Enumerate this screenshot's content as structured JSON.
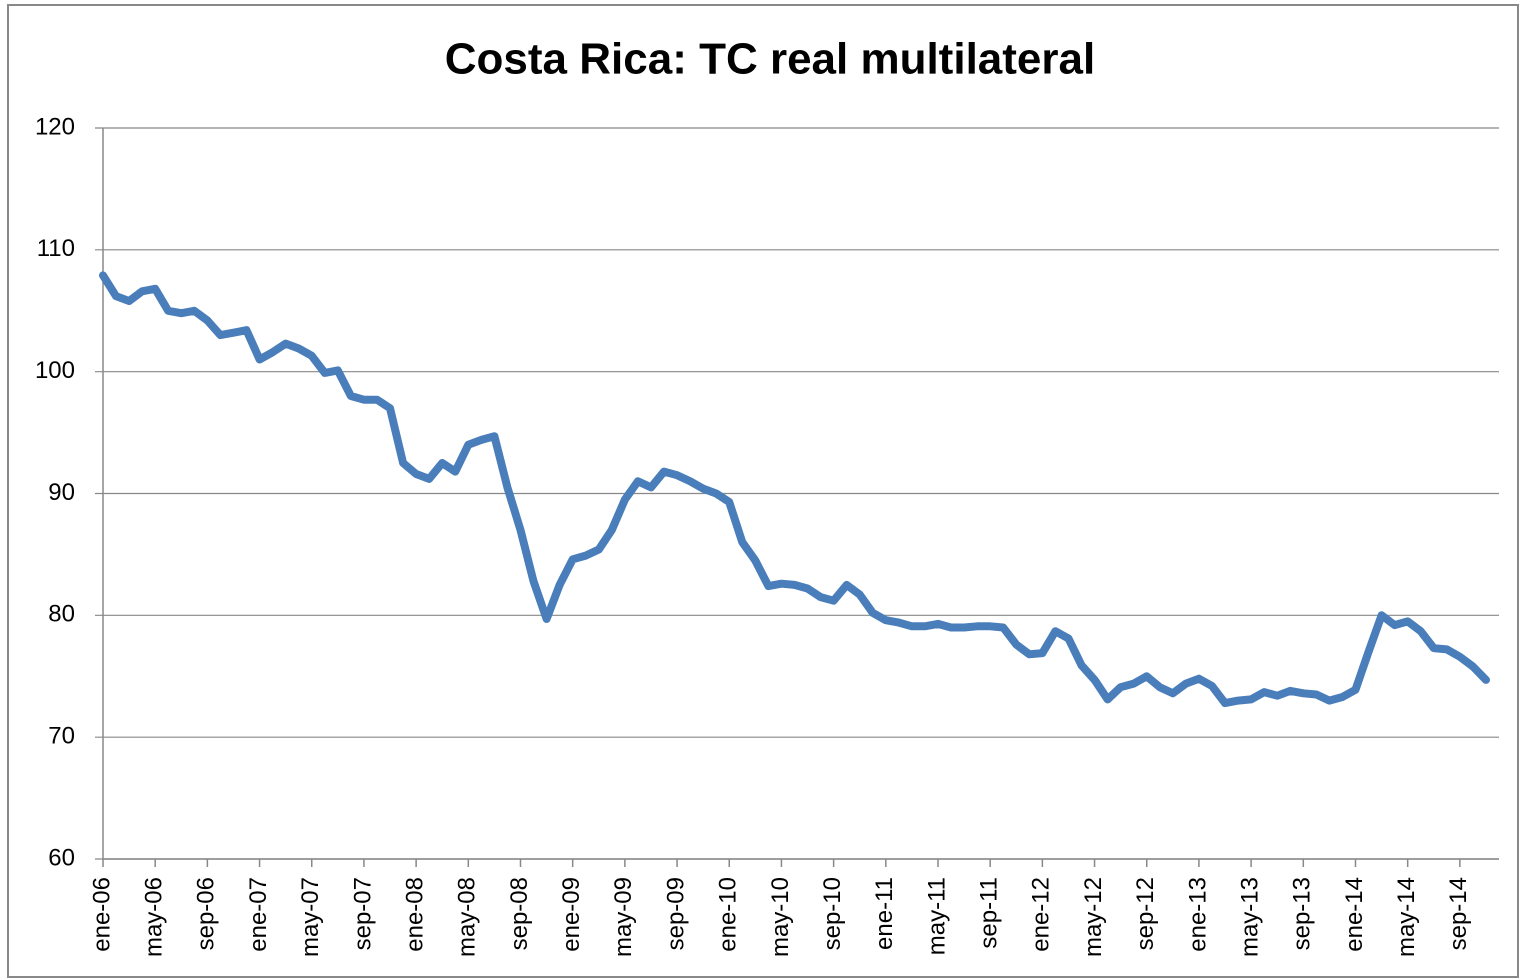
{
  "chart_data": {
    "type": "line",
    "title": "Costa Rica: TC real multilateral",
    "categories": [
      "ene-06",
      null,
      null,
      null,
      "may-06",
      null,
      null,
      null,
      "sep-06",
      null,
      null,
      null,
      "ene-07",
      null,
      null,
      null,
      "may-07",
      null,
      null,
      null,
      "sep-07",
      null,
      null,
      null,
      "ene-08",
      null,
      null,
      null,
      "may-08",
      null,
      null,
      null,
      "sep-08",
      null,
      null,
      null,
      "ene-09",
      null,
      null,
      null,
      "may-09",
      null,
      null,
      null,
      "sep-09",
      null,
      null,
      null,
      "ene-10",
      null,
      null,
      null,
      "may-10",
      null,
      null,
      null,
      "sep-10",
      null,
      null,
      null,
      "ene-11",
      null,
      null,
      null,
      "may-11",
      null,
      null,
      null,
      "sep-11",
      null,
      null,
      null,
      "ene-12",
      null,
      null,
      null,
      "may-12",
      null,
      null,
      null,
      "sep-12",
      null,
      null,
      null,
      "ene-13",
      null,
      null,
      null,
      "may-13",
      null,
      null,
      null,
      "sep-13",
      null,
      null,
      null,
      "ene-14",
      null,
      null,
      null,
      "may-14",
      null,
      null,
      null,
      "sep-14",
      null,
      null
    ],
    "series": [
      {
        "name": "TC real multilateral",
        "color": "#4a7ebb",
        "values": [
          107.9,
          106.2,
          105.8,
          106.6,
          106.8,
          105.0,
          104.8,
          105.0,
          104.2,
          103.0,
          103.2,
          103.4,
          101.0,
          101.6,
          102.3,
          101.9,
          101.3,
          99.9,
          100.1,
          98.0,
          97.7,
          97.7,
          97.0,
          92.5,
          91.6,
          91.2,
          92.5,
          91.8,
          94.0,
          94.4,
          94.7,
          90.5,
          87.0,
          82.8,
          79.7,
          82.5,
          84.6,
          84.9,
          85.4,
          87.0,
          89.5,
          91.0,
          90.5,
          91.8,
          91.5,
          91.0,
          90.4,
          90.0,
          89.3,
          86.0,
          84.5,
          82.4,
          82.6,
          82.5,
          82.2,
          81.5,
          81.2,
          82.5,
          81.7,
          80.2,
          79.6,
          79.4,
          79.1,
          79.1,
          79.3,
          79.0,
          79.0,
          79.1,
          79.1,
          79.0,
          77.6,
          76.8,
          76.9,
          78.7,
          78.1,
          75.9,
          74.7,
          73.1,
          74.1,
          74.4,
          75.0,
          74.1,
          73.6,
          74.4,
          74.8,
          74.2,
          72.8,
          73.0,
          73.1,
          73.7,
          73.4,
          73.8,
          73.6,
          73.5,
          73.0,
          73.3,
          73.9,
          77.0,
          80.0,
          79.2,
          79.5,
          78.7,
          77.3,
          77.2,
          76.6,
          75.8,
          74.7
        ]
      }
    ],
    "ylim": [
      60,
      120
    ],
    "yticks": [
      60,
      70,
      80,
      90,
      100,
      110,
      120
    ],
    "grid": true
  }
}
